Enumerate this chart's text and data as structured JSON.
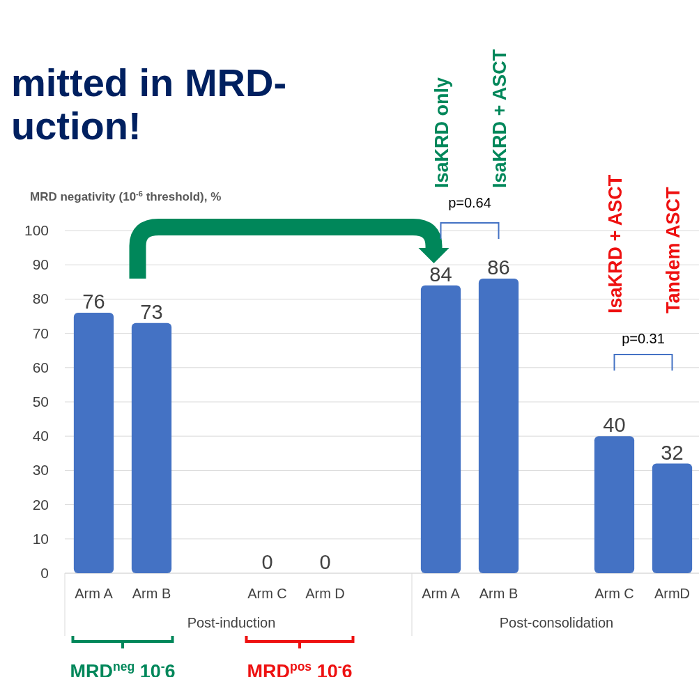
{
  "chart_data": {
    "type": "bar",
    "title": "mitted in MRD-\nuction!",
    "ylabel": "MRD negativity (10$^{-6}$ threshold), %",
    "categories": [
      "Arm A",
      "Arm B",
      null,
      "Arm C",
      "Arm D",
      null,
      "Arm A",
      "Arm B",
      null,
      "Arm C",
      "ArmD"
    ],
    "values": [
      76,
      73,
      null,
      0,
      0,
      null,
      84,
      86,
      null,
      40,
      32
    ],
    "color": "#4472c4",
    "data_labels": true,
    "ylim": [
      0,
      100
    ],
    "yticks": [
      0,
      10,
      20,
      30,
      40,
      50,
      60,
      70,
      80,
      90,
      100
    ],
    "grid": "y",
    "annotations": [
      "p=0.64",
      "p=0.31",
      "IsaKRD only",
      "IsaKRD + ASCT",
      "IsaKRD + ASCT",
      "Tandem ASCT",
      "Post-induction",
      "Post-consolidation",
      "MRD$^{neg}$ 10$^{-}$6",
      "MRD$^{pos}$ 10$^{-}$6"
    ]
  }
}
